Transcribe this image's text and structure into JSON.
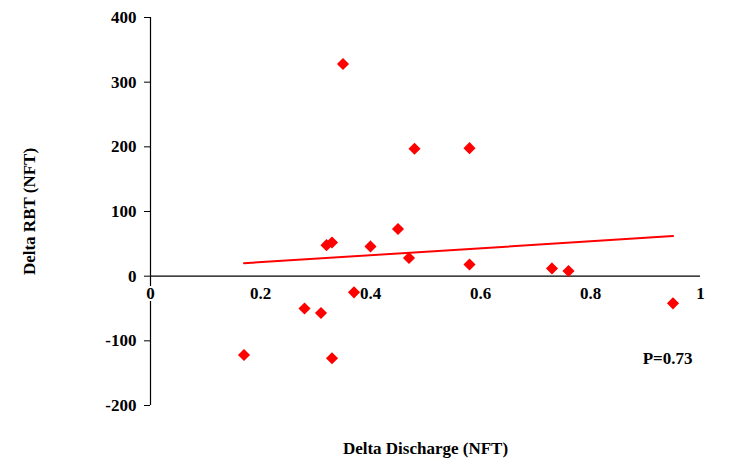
{
  "chart_data": {
    "type": "scatter",
    "x_label": "Delta Discharge (NFT)",
    "y_label": "Delta RBT (NFT)",
    "annotation": "P=0.73",
    "color": "#ff0000",
    "marker": "diamond",
    "x": [
      0.17,
      0.28,
      0.31,
      0.32,
      0.33,
      0.33,
      0.35,
      0.37,
      0.4,
      0.45,
      0.47,
      0.48,
      0.58,
      0.58,
      0.73,
      0.76,
      0.95
    ],
    "values": [
      -122,
      -50,
      -57,
      48,
      52,
      -127,
      328,
      -25,
      46,
      73,
      28,
      197,
      198,
      18,
      12,
      8,
      -42
    ],
    "fit": {
      "x": [
        0.17,
        0.95
      ],
      "y": [
        20,
        62
      ]
    },
    "xlim": [
      0,
      1
    ],
    "xticks": [
      0,
      0.2,
      0.4,
      0.6,
      0.8,
      1
    ],
    "ylim": [
      -200,
      400
    ],
    "yticks": [
      -200,
      -100,
      0,
      100,
      200,
      300,
      400
    ],
    "grid": false
  }
}
